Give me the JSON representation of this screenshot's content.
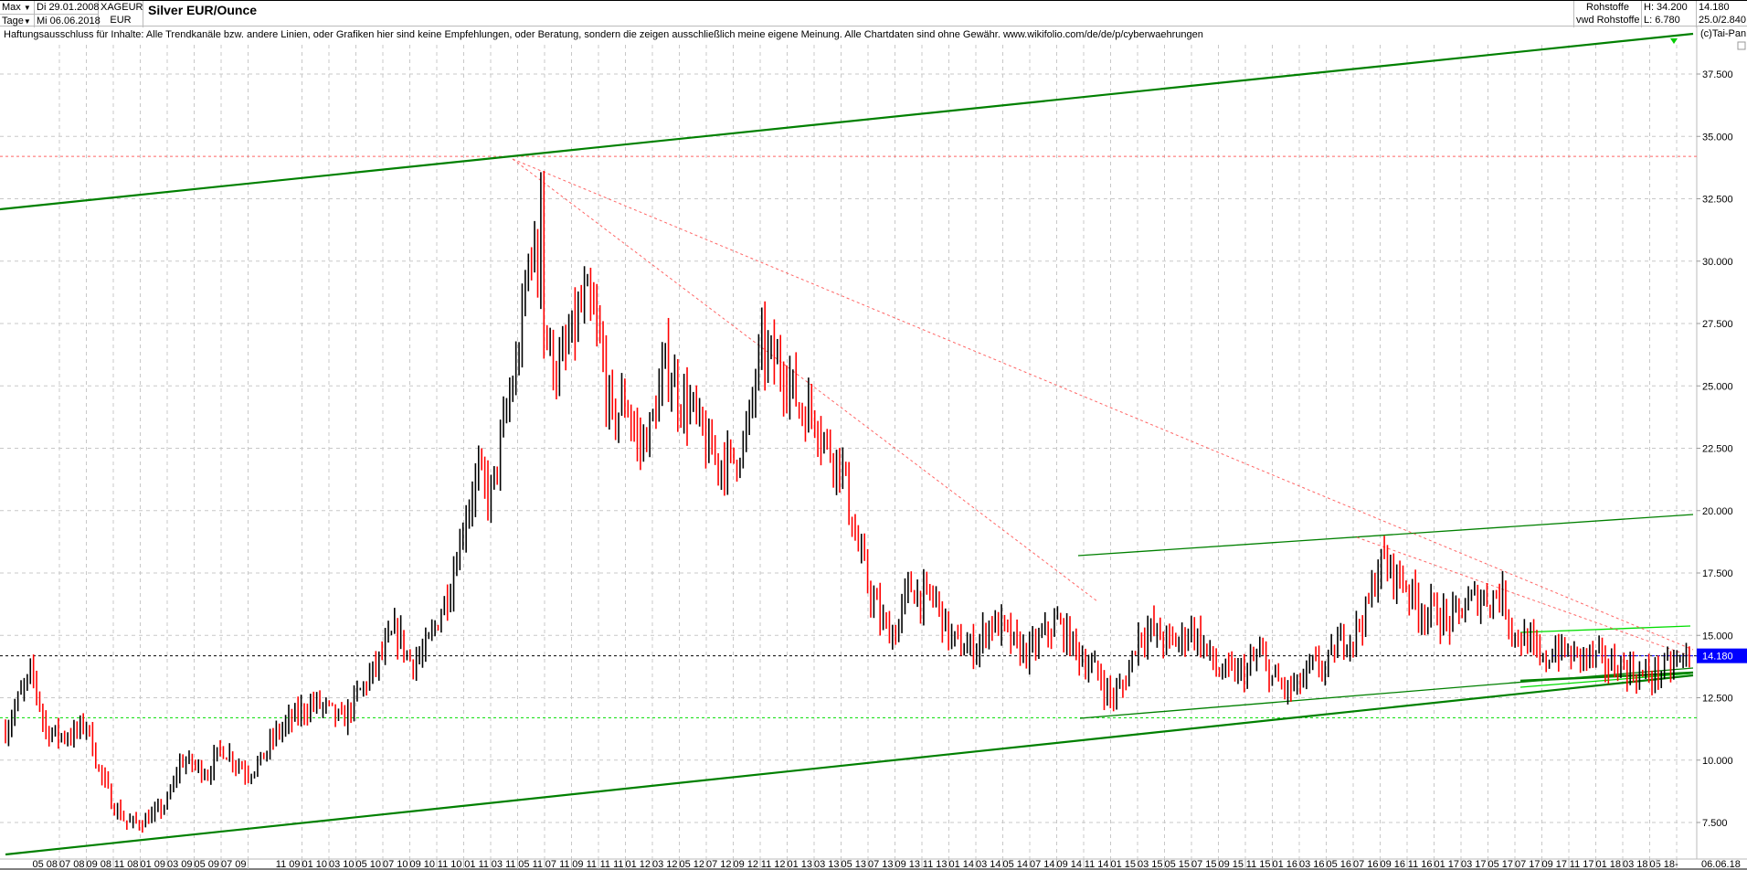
{
  "header": {
    "period_select": "Max",
    "interval_select": "Tage",
    "start_date": "Di 29.01.2008",
    "end_date": "Mi 06.06.2018",
    "symbol": "XAGEUR",
    "currency": "EUR",
    "title": "Silver EUR/Ounce",
    "category": "Rohstoffe",
    "source": "vwd Rohstoffe",
    "high": "H: 34.200",
    "low": "L: 6.780",
    "last": "14.180",
    "ratio": "25.0/2.840"
  },
  "disclaimer": "Haftungsausschluss für Inhalte: Alle Trendkanäle bzw. andere Linien, oder Grafiken hier sind keine Empfehlungen, oder Beratung, sondern die zeigen ausschließlich meine eigene Meinung. Alle Chartdaten sind ohne Gewähr.  www.wikifolio.com/de/de/p/cyberwaehrungen",
  "copyright": "(c)Tai-Pan",
  "colors": {
    "up": "#000000",
    "down": "#ff0000",
    "trend": "#008000",
    "trend_light": "#00dd00",
    "last_box": "#0000ff",
    "resistance": "#ff6666"
  },
  "chart_data": {
    "type": "line",
    "title": "Silver EUR/Ounce",
    "ylim": [
      6.0,
      39.5
    ],
    "grid": true,
    "y_ticks": [
      "7.500",
      "10.000",
      "12.500",
      "15.000",
      "17.500",
      "20.000",
      "22.500",
      "25.000",
      "27.500",
      "30.000",
      "32.500",
      "35.000",
      "37.500"
    ],
    "y_tick_values": [
      7.5,
      10,
      12.5,
      15,
      17.5,
      20,
      22.5,
      25,
      27.5,
      30,
      32.5,
      35,
      37.5
    ],
    "x_ticks": [
      "05 08",
      "07 08",
      "09 08",
      "11 08",
      "01 09",
      "03 09",
      "05 09",
      "07 09",
      "11 09",
      "01 10",
      "03 10",
      "05 10",
      "07 10",
      "09 10",
      "11 10",
      "01 11",
      "03 11",
      "05 11",
      "07 11",
      "09 11",
      "11 11",
      "01 12",
      "03 12",
      "05 12",
      "07 12",
      "09 12",
      "11 12",
      "01 13",
      "03 13",
      "05 13",
      "07 13",
      "09 13",
      "11 13",
      "01 14",
      "03 14",
      "05 14",
      "07 14",
      "09 14",
      "11 14",
      "01 15",
      "03 15",
      "05 15",
      "07 15",
      "09 15",
      "11 15",
      "01 16",
      "03 16",
      "05 16",
      "07 16",
      "09 16",
      "11 16",
      "01 17",
      "03 17",
      "05 17",
      "07 17",
      "09 17",
      "11 17",
      "01 18",
      "03 18",
      "05 18"
    ],
    "x_end_label": "06.06.18",
    "x_sep": "-",
    "x_start": "01 08",
    "monthly_close": [
      11.2,
      12.5,
      13.5,
      11.2,
      11.0,
      11.0,
      11.5,
      9.5,
      8.2,
      7.5,
      7.5,
      7.8,
      8.3,
      10.0,
      9.8,
      9.5,
      10.5,
      10.0,
      9.5,
      10.0,
      11.0,
      11.5,
      12.0,
      12.3,
      12.0,
      11.5,
      12.5,
      13.3,
      14.3,
      15.2,
      14.0,
      14.2,
      15.5,
      17.0,
      19.5,
      21.5,
      20.5,
      23.5,
      26.0,
      31.0,
      27.0,
      25.5,
      27.0,
      28.5,
      27.0,
      23.5,
      24.5,
      22.5,
      23.5,
      26.0,
      24.5,
      24.0,
      22.5,
      22.0,
      22.0,
      23.0,
      26.5,
      26.0,
      25.5,
      24.0,
      24.0,
      22.5,
      22.0,
      19.0,
      17.0,
      15.5,
      15.0,
      17.0,
      16.5,
      16.5,
      15.0,
      14.5,
      14.5,
      15.5,
      15.3,
      14.5,
      14.3,
      15.0,
      15.5,
      14.8,
      14.0,
      13.5,
      12.5,
      13.0,
      15.0,
      15.2,
      14.8,
      14.7,
      15.3,
      14.5,
      13.5,
      13.5,
      13.5,
      14.3,
      13.3,
      12.8,
      13.0,
      13.8,
      13.7,
      14.8,
      15.0,
      16.0,
      18.0,
      17.5,
      17.0,
      16.0,
      16.0,
      15.5,
      16.0,
      16.5,
      16.5,
      16.7,
      15.0,
      14.8,
      13.8,
      14.5,
      14.2,
      14.2,
      14.1,
      13.8,
      13.8,
      13.4,
      13.4,
      13.6,
      13.9,
      14.18
    ],
    "extremes": {
      "high": 34.2,
      "low": 6.78,
      "last": 14.18
    },
    "horizontal_lines": [
      {
        "value": 34.2,
        "style": "dotted",
        "color": "#ff6666"
      },
      {
        "value": 11.7,
        "style": "dotted",
        "color": "#00dd00"
      },
      {
        "value": 14.18,
        "style": "dotted",
        "color": "#000000"
      }
    ]
  }
}
